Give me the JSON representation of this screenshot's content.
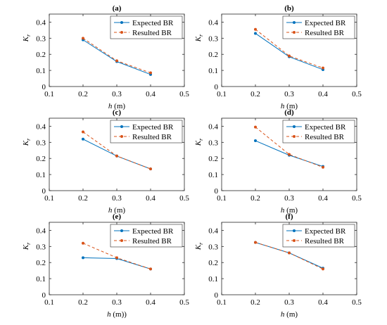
{
  "chart_data": [
    {
      "type": "line",
      "title": "(a)",
      "xlabel": "h (m)",
      "ylabel": "Kr",
      "xlim": [
        0.1,
        0.5
      ],
      "ylim": [
        0,
        0.45
      ],
      "xticks": [
        "0.1",
        "0.2",
        "0.3",
        "0.4",
        "0.5"
      ],
      "yticks": [
        "0",
        "0.1",
        "0.2",
        "0.3",
        "0.4"
      ],
      "legend_position": "top-right",
      "x": [
        0.2,
        0.3,
        0.4
      ],
      "series": [
        {
          "name": "Expected BR",
          "values": [
            0.29,
            0.155,
            0.075
          ],
          "color": "#0072BD",
          "style": "solid"
        },
        {
          "name": "Resulted BR",
          "values": [
            0.3,
            0.16,
            0.085
          ],
          "color": "#D95319",
          "style": "dashed"
        }
      ]
    },
    {
      "type": "line",
      "title": "(b)",
      "xlabel": "h (m)",
      "ylabel": "Kr",
      "xlim": [
        0.1,
        0.5
      ],
      "ylim": [
        0,
        0.45
      ],
      "xticks": [
        "0.1",
        "0.2",
        "0.3",
        "0.4",
        "0.5"
      ],
      "yticks": [
        "0",
        "0.1",
        "0.2",
        "0.3",
        "0.4"
      ],
      "legend_position": "top-right",
      "x": [
        0.2,
        0.3,
        0.4
      ],
      "series": [
        {
          "name": "Expected BR",
          "values": [
            0.33,
            0.185,
            0.105
          ],
          "color": "#0072BD",
          "style": "solid"
        },
        {
          "name": "Resulted BR",
          "values": [
            0.355,
            0.19,
            0.115
          ],
          "color": "#D95319",
          "style": "dashed"
        }
      ]
    },
    {
      "type": "line",
      "title": "(c)",
      "xlabel": "h (m)",
      "ylabel": "Kr",
      "xlim": [
        0.1,
        0.5
      ],
      "ylim": [
        0,
        0.45
      ],
      "xticks": [
        "0.1",
        "0.2",
        "0.3",
        "0.4",
        "0.5"
      ],
      "yticks": [
        "0",
        "0.1",
        "0.2",
        "0.3",
        "0.4"
      ],
      "legend_position": "top-right",
      "x": [
        0.2,
        0.3,
        0.4
      ],
      "series": [
        {
          "name": "Expected BR",
          "values": [
            0.32,
            0.215,
            0.135
          ],
          "color": "#0072BD",
          "style": "solid"
        },
        {
          "name": "Resulted BR",
          "values": [
            0.365,
            0.215,
            0.135
          ],
          "color": "#D95319",
          "style": "dashed"
        }
      ]
    },
    {
      "type": "line",
      "title": "(d)",
      "xlabel": "h (m)",
      "ylabel": "Kr",
      "xlim": [
        0.1,
        0.5
      ],
      "ylim": [
        0,
        0.45
      ],
      "xticks": [
        "0.1",
        "0.2",
        "0.3",
        "0.4",
        "0.5"
      ],
      "yticks": [
        "0",
        "0.1",
        "0.2",
        "0.3",
        "0.4"
      ],
      "legend_position": "top-right",
      "x": [
        0.2,
        0.3,
        0.4
      ],
      "series": [
        {
          "name": "Expected BR",
          "values": [
            0.31,
            0.22,
            0.15
          ],
          "color": "#0072BD",
          "style": "solid"
        },
        {
          "name": "Resulted BR",
          "values": [
            0.395,
            0.225,
            0.145
          ],
          "color": "#D95319",
          "style": "dashed"
        }
      ]
    },
    {
      "type": "line",
      "title": "(e)",
      "xlabel": "h (m))",
      "ylabel": "Kr",
      "xlim": [
        0.1,
        0.5
      ],
      "ylim": [
        0,
        0.45
      ],
      "xticks": [
        "0.1",
        "0.2",
        "0.3",
        "0.4",
        "0.5"
      ],
      "yticks": [
        "0",
        "0.1",
        "0.2",
        "0.3",
        "0.4"
      ],
      "legend_position": "top-right",
      "x": [
        0.2,
        0.3,
        0.4
      ],
      "series": [
        {
          "name": "Expected BR",
          "values": [
            0.23,
            0.225,
            0.16
          ],
          "color": "#0072BD",
          "style": "solid"
        },
        {
          "name": "Resulted BR",
          "values": [
            0.32,
            0.23,
            0.16
          ],
          "color": "#D95319",
          "style": "dashed"
        }
      ]
    },
    {
      "type": "line",
      "title": "(f)",
      "xlabel": "h (m)",
      "ylabel": "Kr",
      "xlim": [
        0.1,
        0.5
      ],
      "ylim": [
        0,
        0.45
      ],
      "xticks": [
        "0.1",
        "0.2",
        "0.3",
        "0.4",
        "0.5"
      ],
      "yticks": [
        "0",
        "0.1",
        "0.2",
        "0.3",
        "0.4"
      ],
      "legend_position": "top-right",
      "x": [
        0.2,
        0.3,
        0.4
      ],
      "series": [
        {
          "name": "Expected BR",
          "values": [
            0.325,
            0.26,
            0.165
          ],
          "color": "#0072BD",
          "style": "solid"
        },
        {
          "name": "Resulted BR",
          "values": [
            0.325,
            0.26,
            0.16
          ],
          "color": "#D95319",
          "style": "dashed"
        }
      ]
    }
  ]
}
